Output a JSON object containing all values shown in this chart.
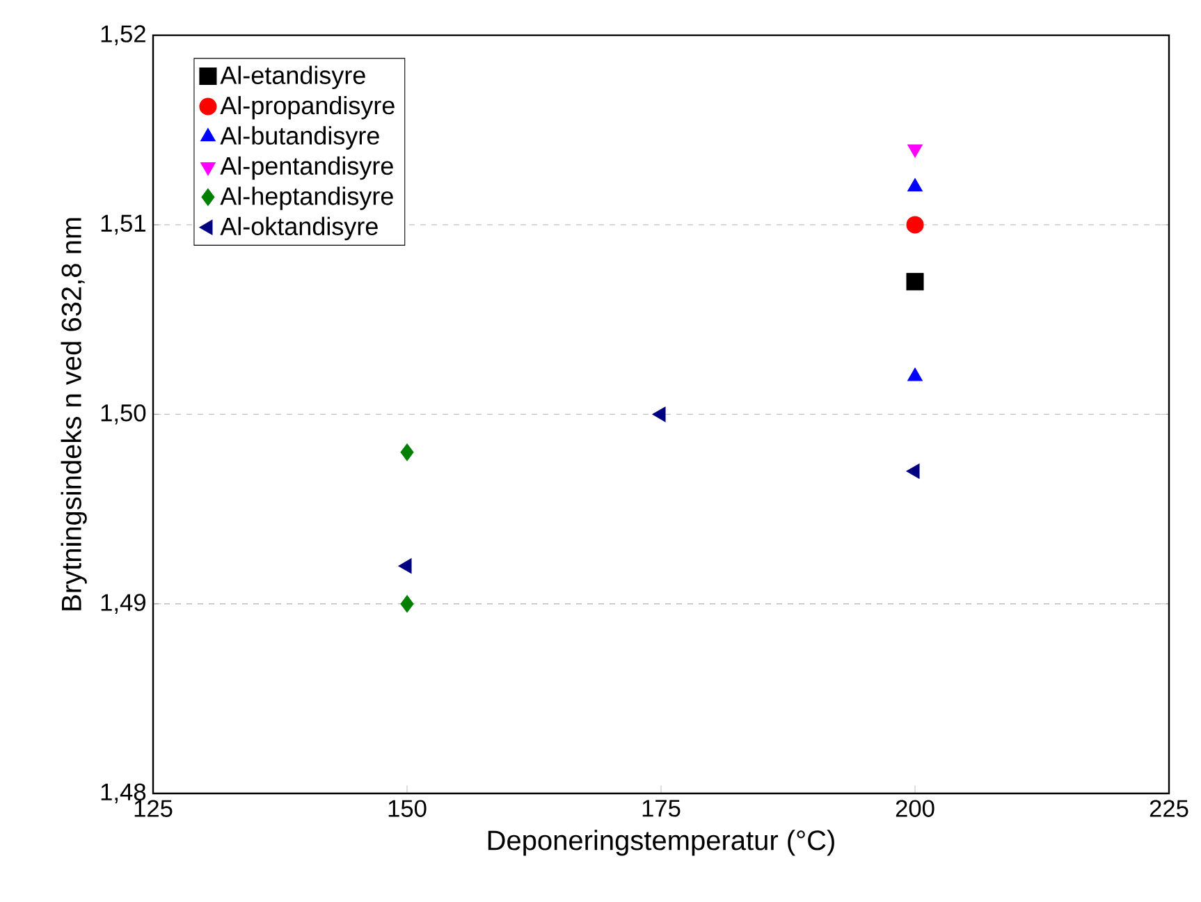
{
  "chart_data": {
    "type": "scatter",
    "xlabel": "Deponeringstemperatur (°C)",
    "ylabel": "Brytningsindeks n ved 632,8 nm",
    "xlim": [
      125,
      225
    ],
    "xticks": [
      125,
      150,
      175,
      200,
      225
    ],
    "ylim": [
      1.48,
      1.52
    ],
    "yticks": [
      {
        "value": 1.48,
        "label": "1,48"
      },
      {
        "value": 1.49,
        "label": "1,49"
      },
      {
        "value": 1.5,
        "label": "1,50"
      },
      {
        "value": 1.51,
        "label": "1,51"
      },
      {
        "value": 1.52,
        "label": "1,52"
      }
    ],
    "grid": "y",
    "legend": "top left",
    "series": [
      {
        "name": "Al-etandisyre",
        "color": "#000000",
        "marker": "square",
        "x": [
          200
        ],
        "values": [
          1.507
        ]
      },
      {
        "name": "Al-propandisyre",
        "color": "#ff0000",
        "marker": "circle",
        "x": [
          200
        ],
        "values": [
          1.51
        ]
      },
      {
        "name": "Al-butandisyre",
        "color": "#0000ff",
        "marker": "triangle",
        "x": [
          200,
          200
        ],
        "values": [
          1.512,
          1.502
        ]
      },
      {
        "name": "Al-pentandisyre",
        "color": "#ff00ff",
        "marker": "triangle-down",
        "x": [
          200
        ],
        "values": [
          1.514
        ]
      },
      {
        "name": "Al-heptandisyre",
        "color": "#008000",
        "marker": "diamond",
        "x": [
          150,
          150
        ],
        "values": [
          1.498,
          1.49
        ]
      },
      {
        "name": "Al-oktandisyre",
        "color": "#000080",
        "marker": "triangle-left",
        "x": [
          150,
          175,
          200
        ],
        "values": [
          1.492,
          1.5,
          1.497
        ]
      }
    ]
  }
}
